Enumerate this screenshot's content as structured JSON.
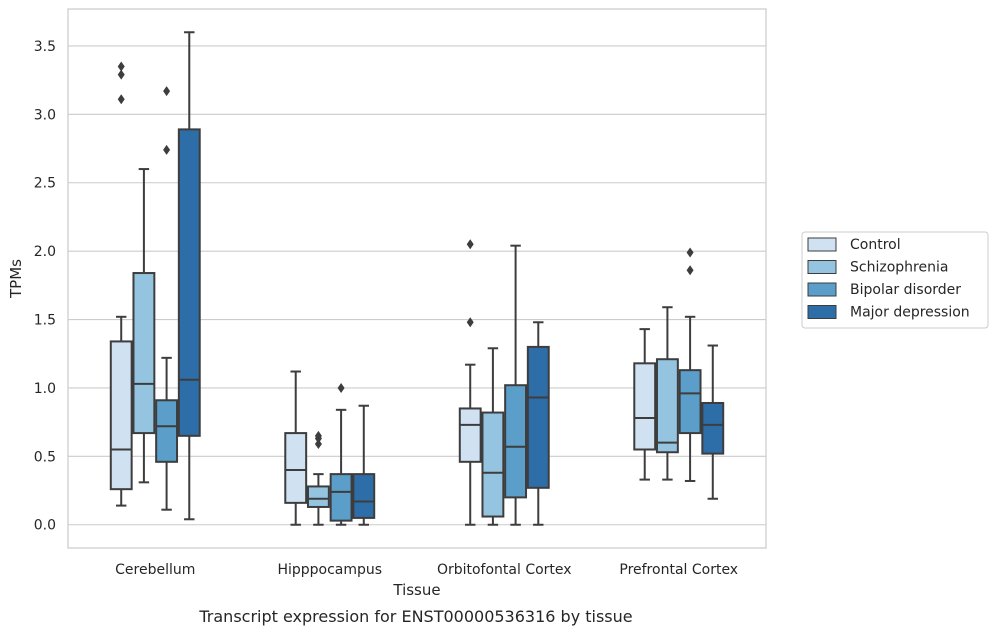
{
  "chart_data": {
    "type": "box",
    "title": "",
    "caption": "Transcript expression for ENST00000536316 by tissue",
    "xlabel": "Tissue",
    "ylabel": "TPMs",
    "ylim": [
      -0.17,
      3.77
    ],
    "yticks": [
      0.0,
      0.5,
      1.0,
      1.5,
      2.0,
      2.5,
      3.0,
      3.5
    ],
    "ytick_labels": [
      "0.0",
      "0.5",
      "1.0",
      "1.5",
      "2.0",
      "2.5",
      "3.0",
      "3.5"
    ],
    "grid": true,
    "legend_position": "right",
    "categories": [
      "Cerebellum",
      "Hipppocampus",
      "Orbitofontal Cortex",
      "Prefrontal Cortex"
    ],
    "series": [
      {
        "name": "Control",
        "color": "#d0e1f2",
        "boxes": [
          {
            "whislo": 0.14,
            "q1": 0.26,
            "med": 0.55,
            "q3": 1.34,
            "whishi": 1.52,
            "fliers": []
          },
          {
            "whislo": 0.0,
            "q1": 0.16,
            "med": 0.4,
            "q3": 0.67,
            "whishi": 1.12,
            "fliers": []
          },
          {
            "whislo": 0.0,
            "q1": 0.46,
            "med": 0.73,
            "q3": 0.85,
            "whishi": 1.17,
            "fliers": [
              1.48,
              2.05
            ]
          },
          {
            "whislo": 0.33,
            "q1": 0.55,
            "med": 0.78,
            "q3": 1.18,
            "whishi": 1.43,
            "fliers": []
          }
        ]
      },
      {
        "name": "Schizophrenia",
        "color": "#94c4df",
        "boxes": [
          {
            "whislo": 0.31,
            "q1": 0.67,
            "med": 1.03,
            "q3": 1.84,
            "whishi": 2.6,
            "fliers": []
          },
          {
            "whislo": 0.0,
            "q1": 0.13,
            "med": 0.19,
            "q3": 0.28,
            "whishi": 0.37,
            "fliers": [
              0.59,
              0.63,
              0.65
            ]
          },
          {
            "whislo": 0.0,
            "q1": 0.06,
            "med": 0.38,
            "q3": 0.82,
            "whishi": 1.29,
            "fliers": []
          },
          {
            "whislo": 0.33,
            "q1": 0.53,
            "med": 0.6,
            "q3": 1.21,
            "whishi": 1.59,
            "fliers": []
          }
        ]
      },
      {
        "name": "Bipolar disorder",
        "color": "#5a9ec9",
        "boxes": [
          {
            "whislo": 0.11,
            "q1": 0.46,
            "med": 0.72,
            "q3": 0.91,
            "whishi": 1.22,
            "fliers": [
              2.74,
              3.17
            ]
          },
          {
            "whislo": 0.0,
            "q1": 0.03,
            "med": 0.24,
            "q3": 0.37,
            "whishi": 0.84,
            "fliers": [
              1.0
            ]
          },
          {
            "whislo": 0.0,
            "q1": 0.2,
            "med": 0.57,
            "q3": 1.02,
            "whishi": 2.04,
            "fliers": []
          },
          {
            "whislo": 0.32,
            "q1": 0.67,
            "med": 0.96,
            "q3": 1.13,
            "whishi": 1.52,
            "fliers": [
              1.86,
              1.99
            ]
          }
        ]
      },
      {
        "name": "Major depression",
        "color": "#2d6ea8",
        "boxes": [
          {
            "whislo": 0.04,
            "q1": 0.65,
            "med": 1.06,
            "q3": 2.89,
            "whishi": 3.6,
            "fliers": []
          },
          {
            "whislo": 0.0,
            "q1": 0.05,
            "med": 0.17,
            "q3": 0.37,
            "whishi": 0.87,
            "fliers": []
          },
          {
            "whislo": 0.0,
            "q1": 0.27,
            "med": 0.93,
            "q3": 1.3,
            "whishi": 1.48,
            "fliers": []
          },
          {
            "whislo": 0.19,
            "q1": 0.52,
            "med": 0.73,
            "q3": 0.89,
            "whishi": 1.31,
            "fliers": []
          }
        ]
      }
    ],
    "first_outliers_extra": {
      "Cerebellum-Control": [
        3.11,
        3.29,
        3.35
      ]
    },
    "colors": {
      "background": "#ffffff",
      "grid": "#cccccc",
      "frame": "#cccccc",
      "box_edge": "#3d3d3d",
      "text": "#262626"
    }
  }
}
